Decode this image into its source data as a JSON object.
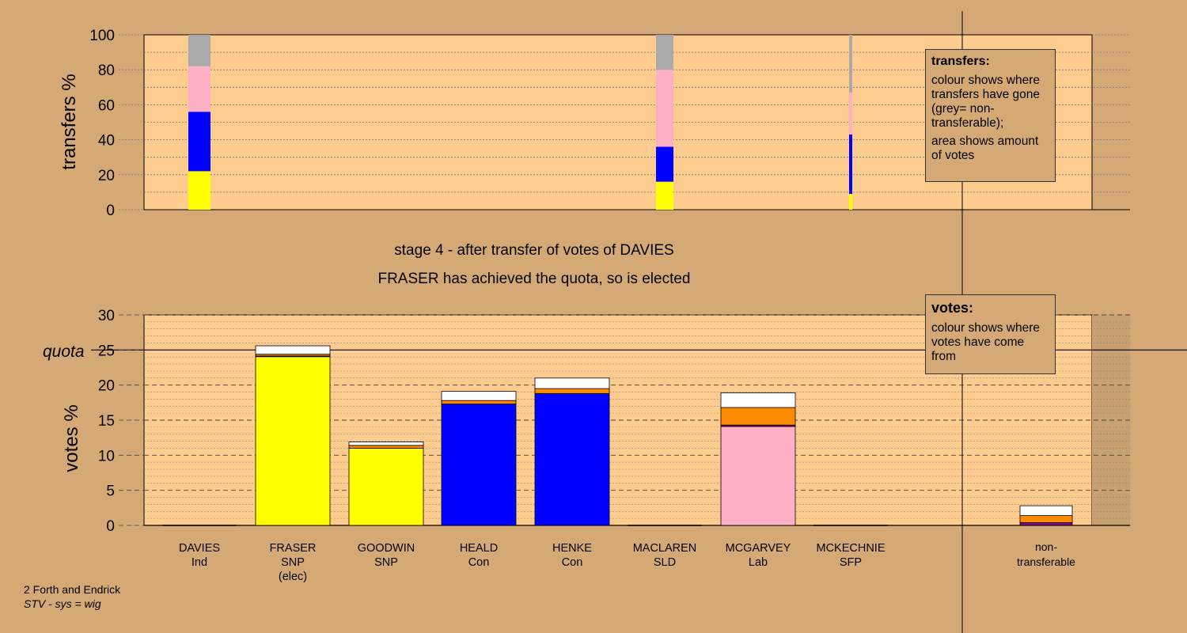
{
  "captions": {
    "stage": "stage 4 - after transfer of votes of DAVIES",
    "result": "FRASER has achieved the quota, so is elected"
  },
  "footer": {
    "ward": "2 Forth and Endrick",
    "system": "STV - sys = wig"
  },
  "legend_transfers": {
    "title": "transfers:",
    "line1": "colour shows where transfers have gone (grey= non-transferable);",
    "line2": "area shows amount of votes"
  },
  "legend_votes": {
    "title": "votes:",
    "line1": "colour shows where votes have come from"
  },
  "colors": {
    "background": "#d4a976",
    "plot_bg": "#ffcc8f",
    "SNP": "#ffff00",
    "Con": "#0000ff",
    "Lab": "#ffb0c4",
    "SLD": "#ff8c00",
    "Ind": "#8b008b",
    "non_transferable": "#aaaaaa",
    "surplus": "#ffffff"
  },
  "chart_data": [
    {
      "type": "bar",
      "stacked": true,
      "ylabel": "transfers %",
      "ylim": [
        0,
        100
      ],
      "yticks": [
        0,
        20,
        40,
        60,
        80,
        100
      ],
      "grid": true,
      "columns": [
        {
          "segments": [
            {
              "party": "SNP",
              "value": 22
            },
            {
              "party": "Con",
              "value": 34
            },
            {
              "party": "Lab",
              "value": 26
            },
            {
              "party": "non_transferable",
              "value": 18
            }
          ],
          "width": "wide"
        },
        {
          "segments": [
            {
              "party": "SNP",
              "value": 16
            },
            {
              "party": "Con",
              "value": 20
            },
            {
              "party": "Lab",
              "value": 44
            },
            {
              "party": "non_transferable",
              "value": 20
            }
          ],
          "width": "wide"
        },
        {
          "segments": [
            {
              "party": "SNP",
              "value": 9
            },
            {
              "party": "Con",
              "value": 34
            },
            {
              "party": "Lab",
              "value": 24
            },
            {
              "party": "non_transferable",
              "value": 33
            }
          ],
          "width": "narrow"
        }
      ]
    },
    {
      "type": "bar",
      "stacked": true,
      "ylabel": "votes %",
      "ylim": [
        0,
        30
      ],
      "yticks": [
        0,
        5,
        10,
        15,
        20,
        25,
        30
      ],
      "quota": 25,
      "quota_label": "quota",
      "grid": true,
      "categories": [
        {
          "name": "DAVIES",
          "party": "Ind",
          "note": ""
        },
        {
          "name": "FRASER",
          "party": "SNP",
          "note": "(elec)"
        },
        {
          "name": "GOODWIN",
          "party": "SNP",
          "note": ""
        },
        {
          "name": "HEALD",
          "party": "Con",
          "note": ""
        },
        {
          "name": "HENKE",
          "party": "Con",
          "note": ""
        },
        {
          "name": "MACLAREN",
          "party": "SLD",
          "note": ""
        },
        {
          "name": "MCGARVEY",
          "party": "Lab",
          "note": ""
        },
        {
          "name": "MCKECHNIE",
          "party": "SFP",
          "note": ""
        },
        {
          "name": "non-transferable",
          "party": "",
          "note": ""
        }
      ],
      "stacks": [
        [],
        [
          {
            "color": "SNP",
            "value": 24.1
          },
          {
            "color": "Ind",
            "value": 0.05
          },
          {
            "color": "SLD",
            "value": 0.25
          },
          {
            "color": "surplus",
            "value": 1.2
          }
        ],
        [
          {
            "color": "SNP",
            "value": 11.0
          },
          {
            "color": "SLD",
            "value": 0.4
          },
          {
            "color": "surplus",
            "value": 0.5
          }
        ],
        [
          {
            "color": "Con",
            "value": 17.3
          },
          {
            "color": "SLD",
            "value": 0.5
          },
          {
            "color": "surplus",
            "value": 1.3
          }
        ],
        [
          {
            "color": "Con",
            "value": 18.8
          },
          {
            "color": "SLD",
            "value": 0.7
          },
          {
            "color": "surplus",
            "value": 1.5
          }
        ],
        [],
        [
          {
            "color": "Lab",
            "value": 14.1
          },
          {
            "color": "Ind",
            "value": 0.2
          },
          {
            "color": "SLD",
            "value": 2.5
          },
          {
            "color": "surplus",
            "value": 2.1
          }
        ],
        [],
        [
          {
            "color": "Ind",
            "value": 0.4
          },
          {
            "color": "SLD",
            "value": 1.0
          },
          {
            "color": "surplus",
            "value": 1.4
          }
        ]
      ]
    }
  ]
}
